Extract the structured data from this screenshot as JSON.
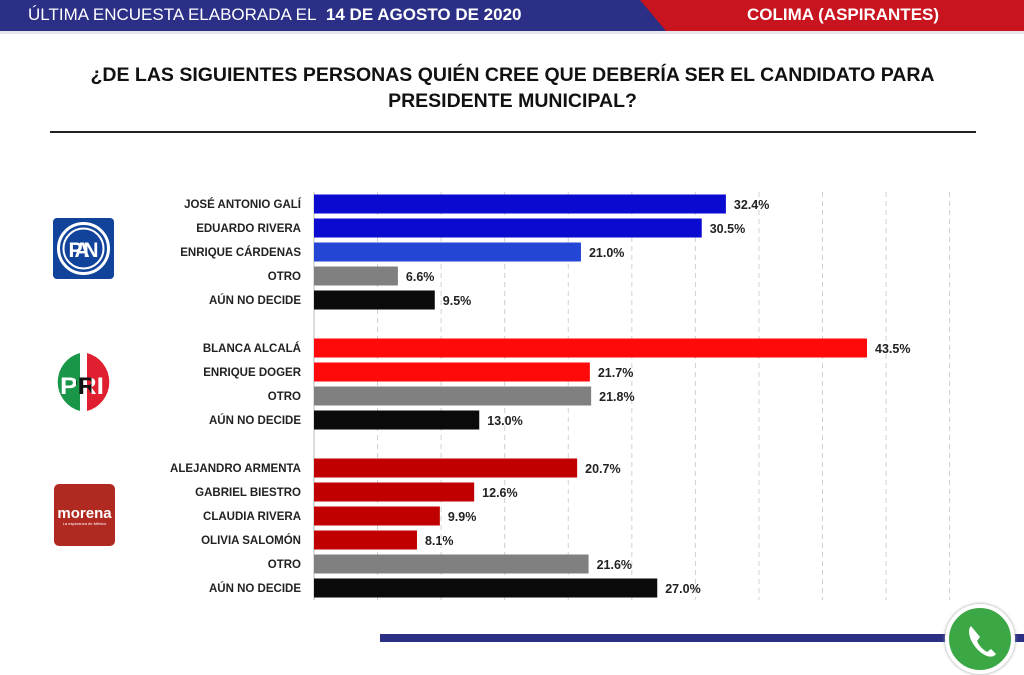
{
  "header": {
    "prefix": "ÚLTIMA ENCUESTA ELABORADA EL",
    "date": "14 DE AGOSTO DE 2020",
    "region": "COLIMA (ASPIRANTES)"
  },
  "title_line1": "¿DE LAS SIGUIENTES PERSONAS QUIÉN CREE QUE DEBERÍA SER EL CANDIDATO PARA",
  "title_line2": "PRESIDENTE MUNICIPAL?",
  "logos": {
    "pan": "PAN",
    "pri": "PRI",
    "morena": "morena",
    "morena_tagline": "La esperanza de México"
  },
  "colors": {
    "pan": "#0a0ad0",
    "pan_light": "#2446d4",
    "pri": "#ff0a0a",
    "morena": "#c00000",
    "otro": "#808080",
    "no_decide": "#0a0a0a"
  },
  "chart_data": {
    "type": "bar",
    "orientation": "horizontal",
    "xlim": [
      0,
      50
    ],
    "grid": true,
    "value_suffix": "%",
    "groups": [
      {
        "party": "PAN",
        "items": [
          {
            "label": "JOSÉ ANTONIO GALÍ",
            "value": 32.4,
            "color": "pan"
          },
          {
            "label": "EDUARDO RIVERA",
            "value": 30.5,
            "color": "pan"
          },
          {
            "label": "ENRIQUE CÁRDENAS",
            "value": 21.0,
            "color": "pan_light"
          },
          {
            "label": "OTRO",
            "value": 6.6,
            "color": "otro"
          },
          {
            "label": "AÚN NO DECIDE",
            "value": 9.5,
            "color": "no_decide"
          }
        ]
      },
      {
        "party": "PRI",
        "items": [
          {
            "label": "BLANCA ALCALÁ",
            "value": 43.5,
            "color": "pri"
          },
          {
            "label": "ENRIQUE DOGER",
            "value": 21.7,
            "color": "pri"
          },
          {
            "label": "OTRO",
            "value": 21.8,
            "color": "otro"
          },
          {
            "label": "AÚN NO DECIDE",
            "value": 13.0,
            "color": "no_decide"
          }
        ]
      },
      {
        "party": "MORENA",
        "items": [
          {
            "label": "ALEJANDRO ARMENTA",
            "value": 20.7,
            "color": "morena"
          },
          {
            "label": "GABRIEL BIESTRO",
            "value": 12.6,
            "color": "morena"
          },
          {
            "label": "CLAUDIA RIVERA",
            "value": 9.9,
            "color": "morena"
          },
          {
            "label": "OLIVIA SALOMÓN",
            "value": 8.1,
            "color": "morena"
          },
          {
            "label": "OTRO",
            "value": 21.6,
            "color": "otro"
          },
          {
            "label": "AÚN NO DECIDE",
            "value": 27.0,
            "color": "no_decide"
          }
        ]
      }
    ]
  }
}
